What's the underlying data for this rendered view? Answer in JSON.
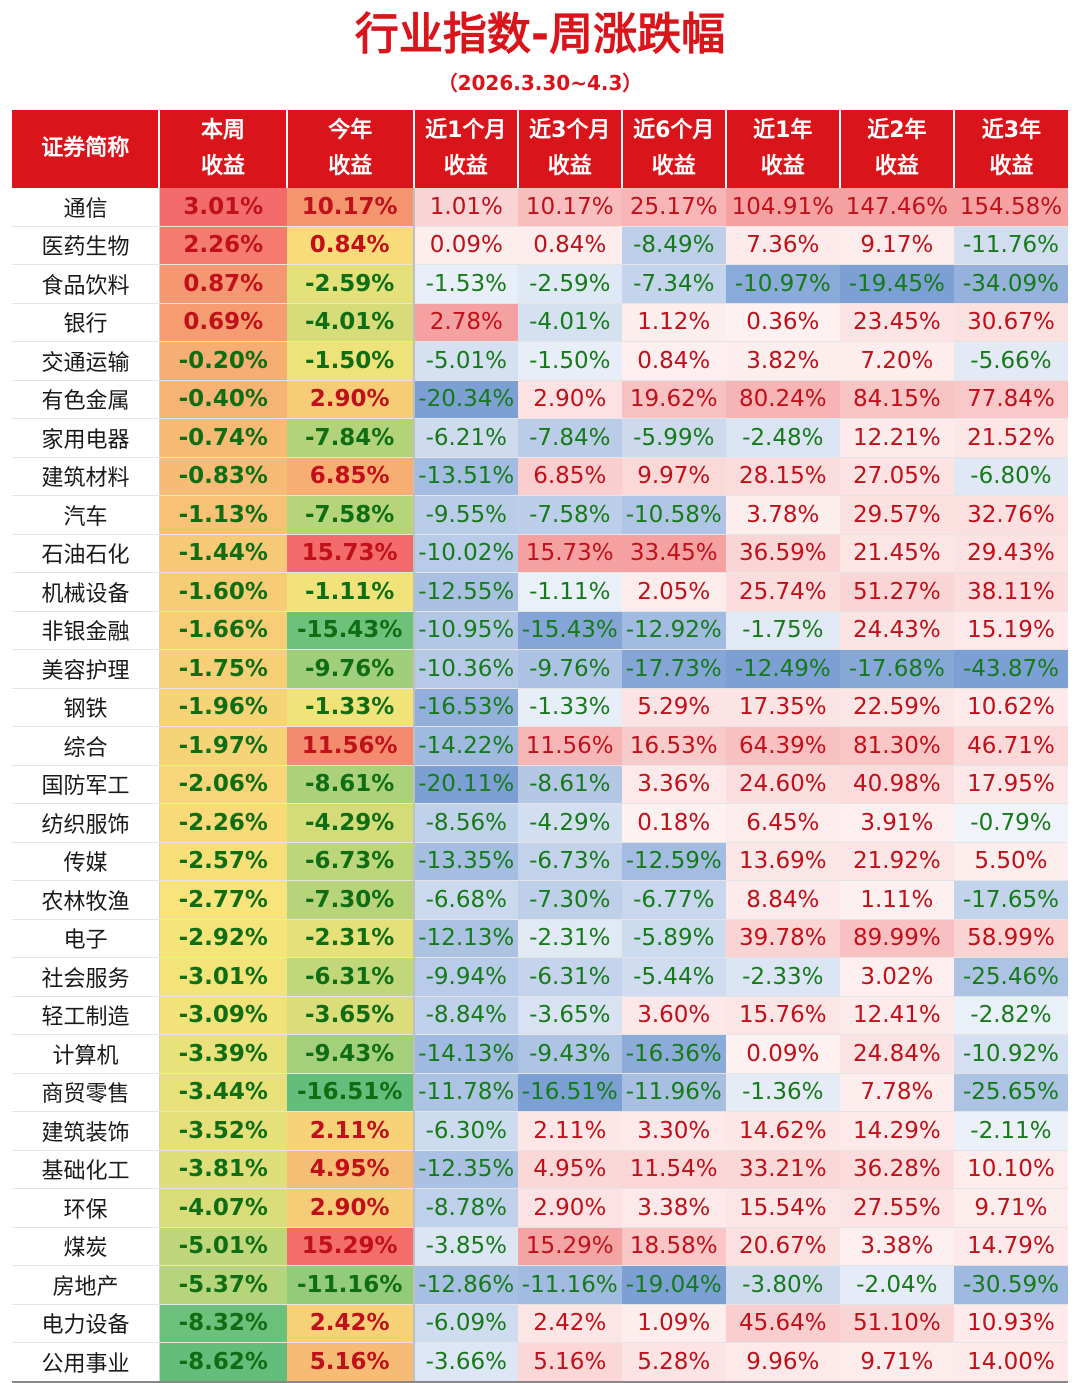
{
  "title": "行业指数-周涨跌幅",
  "subtitle": "（2026.3.30~4.3）",
  "chart_data": {
    "type": "table",
    "columns": [
      {
        "line1": "证券简称",
        "line2": ""
      },
      {
        "line1": "本周",
        "line2": "收益"
      },
      {
        "line1": "今年",
        "line2": "收益"
      },
      {
        "line1": "近1个月",
        "line2": "收益"
      },
      {
        "line1": "近3个月",
        "line2": "收益"
      },
      {
        "line1": "近6个月",
        "line2": "收益"
      },
      {
        "line1": "近1年",
        "line2": "收益"
      },
      {
        "line1": "近2年",
        "line2": "收益"
      },
      {
        "line1": "近3年",
        "line2": "收益"
      }
    ],
    "rows": [
      {
        "name": "通信",
        "values": [
          3.01,
          10.17,
          1.01,
          10.17,
          25.17,
          104.91,
          147.46,
          154.58
        ]
      },
      {
        "name": "医药生物",
        "values": [
          2.26,
          0.84,
          0.09,
          0.84,
          -8.49,
          7.36,
          9.17,
          -11.76
        ]
      },
      {
        "name": "食品饮料",
        "values": [
          0.87,
          -2.59,
          -1.53,
          -2.59,
          -7.34,
          -10.97,
          -19.45,
          -34.09
        ]
      },
      {
        "name": "银行",
        "values": [
          0.69,
          -4.01,
          2.78,
          -4.01,
          1.12,
          0.36,
          23.45,
          30.67
        ]
      },
      {
        "name": "交通运输",
        "values": [
          -0.2,
          -1.5,
          -5.01,
          -1.5,
          0.84,
          3.82,
          7.2,
          -5.66
        ]
      },
      {
        "name": "有色金属",
        "values": [
          -0.4,
          2.9,
          -20.34,
          2.9,
          19.62,
          80.24,
          84.15,
          77.84
        ]
      },
      {
        "name": "家用电器",
        "values": [
          -0.74,
          -7.84,
          -6.21,
          -7.84,
          -5.99,
          -2.48,
          12.21,
          21.52
        ]
      },
      {
        "name": "建筑材料",
        "values": [
          -0.83,
          6.85,
          -13.51,
          6.85,
          9.97,
          28.15,
          27.05,
          -6.8
        ]
      },
      {
        "name": "汽车",
        "values": [
          -1.13,
          -7.58,
          -9.55,
          -7.58,
          -10.58,
          3.78,
          29.57,
          32.76
        ]
      },
      {
        "name": "石油石化",
        "values": [
          -1.44,
          15.73,
          -10.02,
          15.73,
          33.45,
          36.59,
          21.45,
          29.43
        ]
      },
      {
        "name": "机械设备",
        "values": [
          -1.6,
          -1.11,
          -12.55,
          -1.11,
          2.05,
          25.74,
          51.27,
          38.11
        ]
      },
      {
        "name": "非银金融",
        "values": [
          -1.66,
          -15.43,
          -10.95,
          -15.43,
          -12.92,
          -1.75,
          24.43,
          15.19
        ]
      },
      {
        "name": "美容护理",
        "values": [
          -1.75,
          -9.76,
          -10.36,
          -9.76,
          -17.73,
          -12.49,
          -17.68,
          -43.87
        ]
      },
      {
        "name": "钢铁",
        "values": [
          -1.96,
          -1.33,
          -16.53,
          -1.33,
          5.29,
          17.35,
          22.59,
          10.62
        ]
      },
      {
        "name": "综合",
        "values": [
          -1.97,
          11.56,
          -14.22,
          11.56,
          16.53,
          64.39,
          81.3,
          46.71
        ]
      },
      {
        "name": "国防军工",
        "values": [
          -2.06,
          -8.61,
          -20.11,
          -8.61,
          3.36,
          24.6,
          40.98,
          17.95
        ]
      },
      {
        "name": "纺织服饰",
        "values": [
          -2.26,
          -4.29,
          -8.56,
          -4.29,
          0.18,
          6.45,
          3.91,
          -0.79
        ]
      },
      {
        "name": "传媒",
        "values": [
          -2.57,
          -6.73,
          -13.35,
          -6.73,
          -12.59,
          13.69,
          21.92,
          5.5
        ]
      },
      {
        "name": "农林牧渔",
        "values": [
          -2.77,
          -7.3,
          -6.68,
          -7.3,
          -6.77,
          8.84,
          1.11,
          -17.65
        ]
      },
      {
        "name": "电子",
        "values": [
          -2.92,
          -2.31,
          -12.13,
          -2.31,
          -5.89,
          39.78,
          89.99,
          58.99
        ]
      },
      {
        "name": "社会服务",
        "values": [
          -3.01,
          -6.31,
          -9.94,
          -6.31,
          -5.44,
          -2.33,
          3.02,
          -25.46
        ]
      },
      {
        "name": "轻工制造",
        "values": [
          -3.09,
          -3.65,
          -8.84,
          -3.65,
          3.6,
          15.76,
          12.41,
          -2.82
        ]
      },
      {
        "name": "计算机",
        "values": [
          -3.39,
          -9.43,
          -14.13,
          -9.43,
          -16.36,
          0.09,
          24.84,
          -10.92
        ]
      },
      {
        "name": "商贸零售",
        "values": [
          -3.44,
          -16.51,
          -11.78,
          -16.51,
          -11.96,
          -1.36,
          7.78,
          -25.65
        ]
      },
      {
        "name": "建筑装饰",
        "values": [
          -3.52,
          2.11,
          -6.3,
          2.11,
          3.3,
          14.62,
          14.29,
          -2.11
        ]
      },
      {
        "name": "基础化工",
        "values": [
          -3.81,
          4.95,
          -12.35,
          4.95,
          11.54,
          33.21,
          36.28,
          10.1
        ]
      },
      {
        "name": "环保",
        "values": [
          -4.07,
          2.9,
          -8.78,
          2.9,
          3.38,
          15.54,
          27.55,
          9.71
        ]
      },
      {
        "name": "煤炭",
        "values": [
          -5.01,
          15.29,
          -3.85,
          15.29,
          18.58,
          20.67,
          3.38,
          14.79
        ]
      },
      {
        "name": "房地产",
        "values": [
          -5.37,
          -11.16,
          -12.86,
          -11.16,
          -19.04,
          -3.8,
          -2.04,
          -30.59
        ]
      },
      {
        "name": "电力设备",
        "values": [
          -8.32,
          2.42,
          -6.09,
          2.42,
          1.09,
          45.64,
          51.1,
          10.93
        ]
      },
      {
        "name": "公用事业",
        "values": [
          -8.62,
          5.16,
          -3.66,
          5.16,
          5.28,
          9.96,
          9.71,
          14.0
        ]
      }
    ],
    "colors": {
      "header": "#d9141b",
      "positive_text": "#c0101a",
      "negative_text": "#167a1a",
      "heat_high": "#f36b6b",
      "heat_mid": "#f8e57a",
      "heat_low": "#63be7b",
      "bar_positive": "#f28a8a",
      "bar_negative": "#5b87c9"
    }
  }
}
